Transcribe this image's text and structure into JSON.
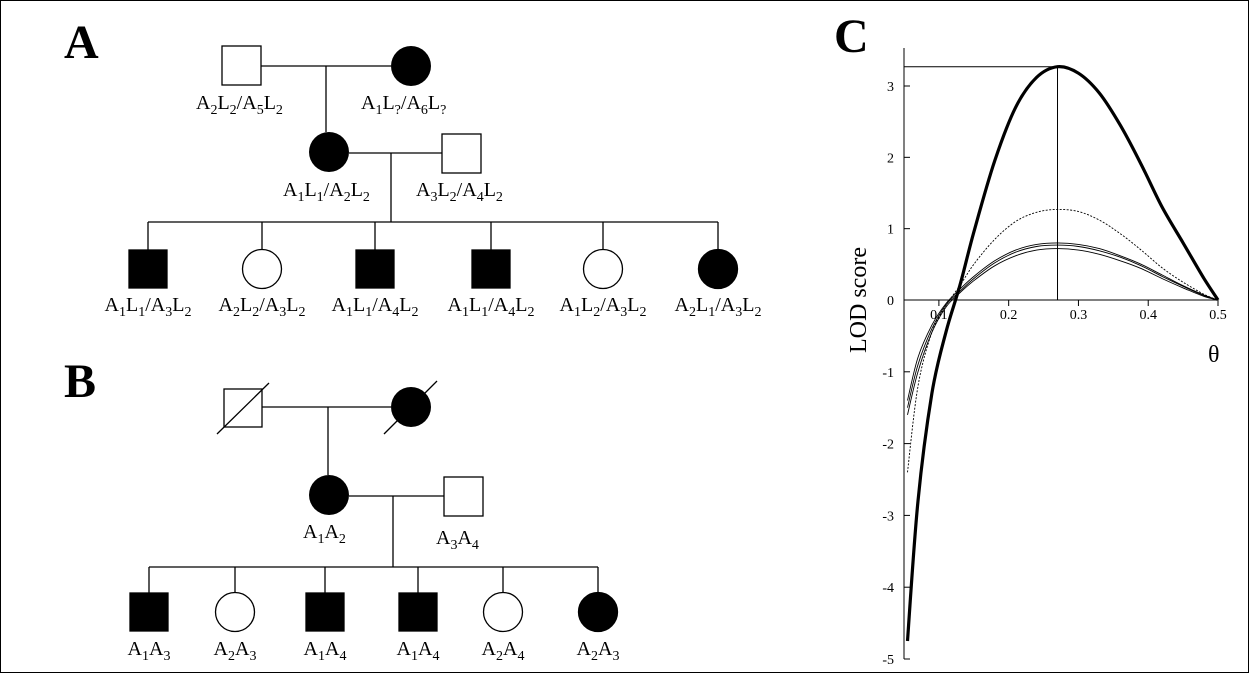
{
  "panels": {
    "A": {
      "label": "A",
      "grandfather_genotype": [
        "A",
        "2",
        "L",
        "2",
        "/",
        "A",
        "5",
        "L",
        "2"
      ],
      "grandmother_genotype": [
        "A",
        "1",
        "L",
        "?",
        "/",
        "A",
        "6",
        "L",
        "?"
      ],
      "mother_genotype": [
        "A",
        "1",
        "L",
        "1",
        "/",
        "A",
        "2",
        "L",
        "2"
      ],
      "father_genotype": [
        "A",
        "3",
        "L",
        "2",
        "/",
        "A",
        "4",
        "L",
        "2"
      ],
      "children": [
        {
          "sex": "male",
          "affected": true,
          "genotype": [
            "A",
            "1",
            "L",
            "1",
            "/",
            "A",
            "3",
            "L",
            "2"
          ]
        },
        {
          "sex": "female",
          "affected": false,
          "genotype": [
            "A",
            "2",
            "L",
            "2",
            "/",
            "A",
            "3",
            "L",
            "2"
          ]
        },
        {
          "sex": "male",
          "affected": true,
          "genotype": [
            "A",
            "1",
            "L",
            "1",
            "/",
            "A",
            "4",
            "L",
            "2"
          ]
        },
        {
          "sex": "male",
          "affected": true,
          "genotype": [
            "A",
            "1",
            "L",
            "1",
            "/",
            "A",
            "4",
            "L",
            "2"
          ]
        },
        {
          "sex": "female",
          "affected": false,
          "genotype": [
            "A",
            "1",
            "L",
            "2",
            "/",
            "A",
            "3",
            "L",
            "2"
          ]
        },
        {
          "sex": "female",
          "affected": true,
          "genotype": [
            "A",
            "2",
            "L",
            "1",
            "/",
            "A",
            "3",
            "L",
            "2"
          ]
        }
      ]
    },
    "B": {
      "label": "B",
      "mother_genotype": [
        "A",
        "1",
        "A",
        "2"
      ],
      "father_genotype": [
        "A",
        "3",
        "A",
        "4"
      ],
      "children": [
        {
          "sex": "male",
          "affected": true,
          "genotype": [
            "A",
            "1",
            "A",
            "3"
          ]
        },
        {
          "sex": "female",
          "affected": false,
          "genotype": [
            "A",
            "2",
            "A",
            "3"
          ]
        },
        {
          "sex": "male",
          "affected": true,
          "genotype": [
            "A",
            "1",
            "A",
            "4"
          ]
        },
        {
          "sex": "male",
          "affected": true,
          "genotype": [
            "A",
            "1",
            "A",
            "4"
          ]
        },
        {
          "sex": "female",
          "affected": false,
          "genotype": [
            "A",
            "2",
            "A",
            "4"
          ]
        },
        {
          "sex": "female",
          "affected": true,
          "genotype": [
            "A",
            "2",
            "A",
            "3"
          ]
        }
      ]
    },
    "C": {
      "label": "C"
    }
  },
  "chart_data": {
    "type": "line",
    "ylabel": "LOD score",
    "xlabel": "θ",
    "xlim": [
      0.05,
      0.5
    ],
    "ylim": [
      -5,
      3.5
    ],
    "x_ticks": [
      "0.1",
      "0.2",
      "0.3",
      "0.4",
      "0.5"
    ],
    "y_ticks": [
      "3",
      "2",
      "1",
      "0",
      "-1",
      "-2",
      "-3",
      "-4",
      "-5"
    ],
    "x_tick_values": [
      0.1,
      0.2,
      0.3,
      0.4,
      0.5
    ],
    "y_tick_values": [
      3,
      2,
      1,
      0,
      -1,
      -2,
      -3,
      -4,
      -5
    ],
    "max_marker": {
      "x": 0.27,
      "y": 3.27
    },
    "series": [
      {
        "style": "bold",
        "x": [
          0.055,
          0.07,
          0.09,
          0.11,
          0.13,
          0.15,
          0.18,
          0.21,
          0.24,
          0.27,
          0.3,
          0.33,
          0.36,
          0.39,
          0.42,
          0.45,
          0.48,
          0.5
        ],
        "y": [
          -4.75,
          -2.8,
          -1.3,
          -0.45,
          0.2,
          0.95,
          1.95,
          2.7,
          3.12,
          3.27,
          3.18,
          2.9,
          2.45,
          1.9,
          1.3,
          0.8,
          0.3,
          0.0
        ]
      },
      {
        "style": "thin",
        "x": [
          0.055,
          0.07,
          0.09,
          0.11,
          0.13,
          0.15,
          0.18,
          0.21,
          0.24,
          0.27,
          0.3,
          0.33,
          0.36,
          0.39,
          0.42,
          0.45,
          0.48,
          0.5
        ],
        "y": [
          -2.4,
          -1.2,
          -0.45,
          -0.08,
          0.2,
          0.5,
          0.85,
          1.1,
          1.23,
          1.27,
          1.24,
          1.12,
          0.93,
          0.7,
          0.45,
          0.25,
          0.08,
          0.0
        ]
      },
      {
        "style": "thin",
        "x": [
          0.055,
          0.07,
          0.09,
          0.11,
          0.13,
          0.15,
          0.18,
          0.21,
          0.24,
          0.27,
          0.3,
          0.33,
          0.36,
          0.39,
          0.42,
          0.45,
          0.48,
          0.5
        ],
        "y": [
          -1.4,
          -0.8,
          -0.35,
          -0.05,
          0.15,
          0.33,
          0.55,
          0.7,
          0.78,
          0.8,
          0.78,
          0.72,
          0.62,
          0.5,
          0.35,
          0.2,
          0.07,
          0.0
        ]
      },
      {
        "style": "thin",
        "x": [
          0.055,
          0.07,
          0.09,
          0.11,
          0.13,
          0.15,
          0.18,
          0.21,
          0.24,
          0.27,
          0.3,
          0.33,
          0.36,
          0.39,
          0.42,
          0.45,
          0.48,
          0.5
        ],
        "y": [
          -1.5,
          -0.9,
          -0.4,
          -0.07,
          0.12,
          0.3,
          0.52,
          0.67,
          0.75,
          0.77,
          0.75,
          0.69,
          0.6,
          0.48,
          0.33,
          0.19,
          0.06,
          0.0
        ]
      },
      {
        "style": "thin",
        "x": [
          0.055,
          0.07,
          0.09,
          0.11,
          0.13,
          0.15,
          0.18,
          0.21,
          0.24,
          0.27,
          0.3,
          0.33,
          0.36,
          0.39,
          0.42,
          0.45,
          0.48,
          0.5
        ],
        "y": [
          -1.6,
          -1.0,
          -0.45,
          -0.1,
          0.1,
          0.27,
          0.48,
          0.62,
          0.7,
          0.72,
          0.7,
          0.64,
          0.55,
          0.44,
          0.3,
          0.17,
          0.05,
          0.0
        ]
      }
    ]
  }
}
